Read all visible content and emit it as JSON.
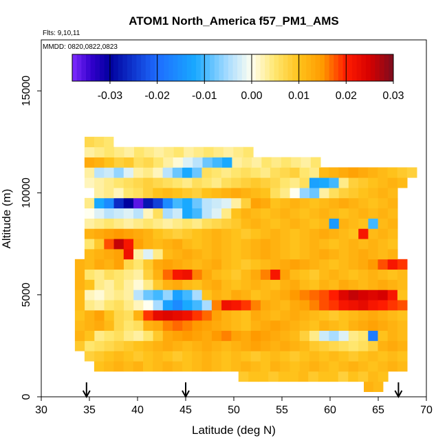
{
  "chart_data": {
    "type": "heatmap",
    "title": "ATOM1 North_America f57_PM1_AMS",
    "annotations": {
      "flights": "Flts: 9,10,11",
      "dates": "MMDD: 0820,0822,0823"
    },
    "xlabel": "Latitude (deg N)",
    "ylabel": "Altitude (m)",
    "xlim": [
      30,
      70
    ],
    "ylim": [
      0,
      17500
    ],
    "x_ticks": [
      "30",
      "35",
      "40",
      "45",
      "50",
      "55",
      "60",
      "65",
      "70"
    ],
    "y_ticks": [
      "0",
      "5000",
      "10000",
      "15000"
    ],
    "colorbar": {
      "range": [
        -0.038,
        0.03
      ],
      "ticks": [
        "-0.03",
        "-0.02",
        "-0.01",
        "0.00",
        "0.01",
        "0.02",
        "0.03"
      ],
      "stops": [
        {
          "v": -0.038,
          "c": "#7f2cff"
        },
        {
          "v": -0.034,
          "c": "#3300cc"
        },
        {
          "v": -0.03,
          "c": "#00009e"
        },
        {
          "v": -0.02,
          "c": "#1e6cff"
        },
        {
          "v": -0.012,
          "c": "#19a9ff"
        },
        {
          "v": -0.005,
          "c": "#a9dcff"
        },
        {
          "v": 0.0,
          "c": "#fffff0"
        },
        {
          "v": 0.005,
          "c": "#ffe66e"
        },
        {
          "v": 0.01,
          "c": "#ffc21b"
        },
        {
          "v": 0.015,
          "c": "#ff9a00"
        },
        {
          "v": 0.02,
          "c": "#ff1c00"
        },
        {
          "v": 0.025,
          "c": "#d60000"
        },
        {
          "v": 0.03,
          "c": "#7a0d1f"
        }
      ]
    },
    "arrows_latitude": [
      34.7,
      45.0,
      67.1
    ],
    "bins": {
      "lat_start": 34.5,
      "lat_step": 1.0,
      "alt_start": 500,
      "alt_step": 500
    },
    "rows": [
      {
        "alt": 500,
        "lat": [
          64.0,
          65.0
        ],
        "v": [
          0.012,
          0.011
        ]
      },
      {
        "alt": 1000,
        "lat": [
          51.0,
          65.5
        ],
        "v": [
          0.009,
          0.01,
          0.01,
          0.009,
          0.01,
          0.01,
          0.011,
          0.009,
          0.01,
          0.01,
          0.008,
          0.01,
          0.009,
          0.011,
          0.01
        ]
      },
      {
        "alt": 1500,
        "lat": [
          36.0,
          67.5
        ],
        "v": [
          0.01,
          0.011,
          0.012,
          0.011,
          0.012,
          0.01,
          0.011,
          0.012,
          0.011,
          0.01,
          0.011,
          0.012,
          0.011,
          0.01,
          0.011,
          0.012,
          0.011,
          0.01,
          0.012,
          0.011,
          0.01,
          0.011,
          0.012,
          0.011,
          0.01,
          0.011,
          0.012,
          0.011,
          0.01,
          0.011,
          0.012,
          0.011
        ]
      },
      {
        "alt": 2000,
        "lat": [
          35.0,
          67.5
        ],
        "v": [
          0.008,
          0.009,
          0.01,
          0.011,
          0.01,
          0.009,
          0.01,
          0.011,
          0.01,
          0.009,
          0.01,
          0.011,
          0.012,
          0.011,
          0.01,
          0.011,
          0.01,
          0.009,
          0.01,
          0.011,
          0.01,
          0.009,
          0.01,
          0.011,
          0.01,
          0.011,
          0.01,
          0.009,
          0.01,
          0.011,
          0.01,
          0.011,
          0.01
        ]
      },
      {
        "alt": 2500,
        "lat": [
          34.0,
          67.5
        ],
        "v": [
          0.009,
          0.005,
          0.006,
          0.007,
          0.008,
          0.009,
          0.01,
          0.011,
          0.012,
          0.013,
          0.012,
          0.011,
          0.012,
          0.013,
          0.012,
          0.011,
          0.012,
          0.013,
          0.014,
          0.013,
          0.012,
          0.013,
          0.012,
          0.011,
          0.009,
          0.008,
          0.007,
          0.006,
          0.005,
          0.006,
          0.008,
          0.012,
          0.013,
          0.012
        ]
      },
      {
        "alt": 3000,
        "lat": [
          34.0,
          67.5
        ],
        "v": [
          0.012,
          0.01,
          0.004,
          0.005,
          0.006,
          0.004,
          0.003,
          0.005,
          0.009,
          0.013,
          0.014,
          0.015,
          0.014,
          0.013,
          0.015,
          0.016,
          0.014,
          0.013,
          0.015,
          0.014,
          0.013,
          0.012,
          0.011,
          0.008,
          0.004,
          -0.003,
          -0.005,
          -0.002,
          0.004,
          0.005,
          -0.018,
          0.01,
          0.012,
          0.011
        ]
      },
      {
        "alt": 3500,
        "lat": [
          34.0,
          67.5
        ],
        "v": [
          0.011,
          0.012,
          0.013,
          0.011,
          0.007,
          0.005,
          0.006,
          0.012,
          0.013,
          0.016,
          0.017,
          0.016,
          0.015,
          0.014,
          0.013,
          0.012,
          0.011,
          0.01,
          0.012,
          0.013,
          0.014,
          0.013,
          0.012,
          0.011,
          0.01,
          0.012,
          0.011,
          0.01,
          0.012,
          0.013,
          0.014,
          0.013,
          0.012,
          0.011
        ]
      },
      {
        "alt": 4000,
        "lat": [
          34.0,
          67.5
        ],
        "v": [
          0.01,
          0.012,
          0.014,
          0.01,
          0.007,
          0.006,
          0.012,
          0.019,
          0.023,
          0.024,
          0.023,
          0.022,
          0.019,
          0.017,
          0.014,
          0.012,
          0.011,
          0.01,
          0.013,
          0.012,
          0.011,
          0.012,
          0.013,
          0.012,
          0.011,
          0.01,
          0.009,
          0.01,
          0.011,
          0.012,
          0.013,
          0.012,
          0.011,
          0.01
        ]
      },
      {
        "alt": 4500,
        "lat": [
          34.0,
          67.5
        ],
        "v": [
          0.011,
          0.004,
          0.003,
          0.005,
          0.006,
          0.004,
          0.002,
          0.0,
          -0.005,
          -0.013,
          -0.016,
          -0.012,
          -0.01,
          -0.005,
          0.016,
          0.022,
          0.021,
          0.019,
          0.016,
          0.013,
          0.012,
          0.011,
          0.013,
          0.014,
          0.016,
          0.018,
          0.019,
          0.021,
          0.022,
          0.023,
          0.021,
          0.02,
          0.019,
          0.018
        ]
      },
      {
        "alt": 5000,
        "lat": [
          34.0,
          67.5
        ],
        "v": [
          0.011,
          0.002,
          0.001,
          0.003,
          0.004,
          0.003,
          -0.004,
          -0.008,
          -0.01,
          -0.006,
          -0.013,
          -0.01,
          -0.005,
          0.01,
          0.012,
          0.011,
          0.013,
          0.012,
          0.01,
          0.011,
          0.012,
          0.013,
          0.015,
          0.016,
          0.017,
          0.018,
          0.02,
          0.024,
          0.026,
          0.025,
          0.024,
          0.025,
          0.021,
          0.01
        ]
      },
      {
        "alt": 5500,
        "lat": [
          34.0,
          67.5
        ],
        "v": [
          0.012,
          0.01,
          0.004,
          0.003,
          0.005,
          0.003,
          0.001,
          0.004,
          0.009,
          0.012,
          0.013,
          0.011,
          0.01,
          0.012,
          0.013,
          0.011,
          0.01,
          0.011,
          0.012,
          0.011,
          0.01,
          0.012,
          0.013,
          0.011,
          0.01,
          0.012,
          0.011,
          0.013,
          0.012,
          0.011,
          0.012,
          0.013,
          0.012,
          0.011
        ]
      },
      {
        "alt": 6000,
        "lat": [
          34.0,
          67.5
        ],
        "v": [
          0.012,
          0.005,
          0.004,
          0.006,
          0.005,
          0.004,
          0.003,
          0.008,
          0.012,
          0.017,
          0.021,
          0.022,
          0.016,
          0.013,
          0.011,
          0.01,
          0.009,
          0.011,
          0.013,
          0.016,
          0.021,
          0.014,
          0.011,
          0.01,
          0.009,
          0.011,
          0.012,
          0.011,
          0.01,
          0.011,
          0.012,
          0.011,
          0.01,
          0.011
        ]
      },
      {
        "alt": 6500,
        "lat": [
          34.0,
          67.5
        ],
        "v": [
          0.012,
          0.011,
          0.013,
          0.012,
          0.014,
          0.007,
          0.005,
          0.009,
          0.013,
          0.014,
          0.013,
          0.012,
          0.011,
          0.012,
          0.013,
          0.011,
          0.01,
          0.009,
          0.01,
          0.011,
          0.012,
          0.013,
          0.014,
          0.013,
          0.012,
          0.011,
          0.01,
          0.011,
          0.012,
          0.013,
          0.015,
          0.018,
          0.021,
          0.019
        ]
      },
      {
        "alt": 7000,
        "lat": [
          35.0,
          66.5
        ],
        "v": [
          0.011,
          0.012,
          0.013,
          0.014,
          0.022,
          0.003,
          -0.002,
          0.004,
          0.011,
          0.012,
          0.013,
          0.012,
          0.011,
          0.012,
          0.011,
          0.01,
          0.011,
          0.012,
          0.013,
          0.012,
          0.011,
          0.01,
          0.011,
          0.012,
          0.013,
          0.012,
          0.011,
          0.012,
          0.013,
          0.012,
          0.011,
          0.012
        ]
      },
      {
        "alt": 7500,
        "lat": [
          35.0,
          66.5
        ],
        "v": [
          0.005,
          0.009,
          0.018,
          0.026,
          0.021,
          0.014,
          0.012,
          0.011,
          0.012,
          0.013,
          0.011,
          0.01,
          0.011,
          0.012,
          0.011,
          0.01,
          0.011,
          0.012,
          0.013,
          0.012,
          0.011,
          0.01,
          0.011,
          0.012,
          0.011,
          0.01,
          0.011,
          0.012,
          0.011,
          0.012,
          0.011,
          0.01
        ]
      },
      {
        "alt": 8000,
        "lat": [
          35.0,
          66.5
        ],
        "v": [
          0.012,
          0.013,
          0.014,
          0.015,
          0.014,
          0.013,
          0.012,
          0.01,
          0.009,
          0.008,
          0.009,
          0.01,
          0.011,
          0.012,
          0.011,
          0.01,
          0.009,
          0.01,
          0.011,
          0.012,
          0.011,
          0.01,
          0.011,
          0.012,
          0.013,
          0.012,
          0.011,
          0.01,
          0.021,
          0.011,
          0.012,
          0.011
        ]
      },
      {
        "alt": 8500,
        "lat": [
          35.0,
          66.5
        ],
        "v": [
          0.003,
          0.004,
          0.005,
          0.004,
          0.003,
          0.004,
          0.005,
          0.004,
          0.003,
          0.004,
          0.005,
          0.004,
          0.006,
          0.007,
          0.008,
          0.009,
          0.011,
          0.012,
          0.011,
          0.01,
          0.011,
          0.012,
          0.011,
          0.01,
          0.011,
          -0.014,
          0.012,
          0.011,
          0.01,
          -0.01,
          0.011,
          0.012
        ]
      },
      {
        "alt": 9000,
        "lat": [
          35.0,
          66.5
        ],
        "v": [
          0.0,
          -0.002,
          -0.004,
          -0.003,
          -0.002,
          -0.004,
          0.002,
          0.006,
          -0.005,
          -0.003,
          -0.012,
          -0.01,
          -0.004,
          -0.002,
          0.004,
          0.01,
          0.012,
          0.011,
          0.01,
          0.011,
          0.012,
          0.011,
          0.01,
          0.011,
          0.012,
          0.011,
          0.01,
          0.011,
          0.012,
          0.011,
          0.012,
          0.011
        ]
      },
      {
        "alt": 9500,
        "lat": [
          35.0,
          66.5
        ],
        "v": [
          0.004,
          -0.012,
          -0.016,
          -0.026,
          -0.03,
          -0.036,
          -0.028,
          -0.024,
          -0.016,
          -0.01,
          -0.012,
          -0.008,
          -0.004,
          -0.003,
          -0.002,
          0.003,
          0.008,
          0.014,
          0.013,
          0.01,
          0.011,
          0.012,
          0.011,
          0.01,
          0.011,
          0.012,
          0.013,
          0.012,
          0.011,
          0.01,
          0.011,
          0.012
        ]
      },
      {
        "alt": 10000,
        "lat": [
          36.0,
          66.5
        ],
        "v": [
          0.003,
          0.004,
          0.002,
          0.005,
          0.006,
          0.008,
          0.01,
          0.011,
          0.01,
          0.009,
          0.008,
          0.01,
          0.011,
          0.012,
          0.013,
          0.012,
          0.011,
          0.01,
          0.006,
          0.004,
          0.0,
          -0.006,
          -0.008,
          0.003,
          0.006,
          0.008,
          0.009,
          0.01,
          0.011,
          0.012,
          0.011
        ]
      },
      {
        "alt": 10500,
        "lat": [
          35.0,
          67.5
        ],
        "v": [
          0.002,
          0.003,
          0.004,
          0.005,
          0.006,
          0.007,
          0.008,
          0.007,
          0.006,
          0.005,
          0.004,
          0.006,
          0.005,
          0.004,
          0.006,
          0.007,
          0.008,
          0.009,
          0.008,
          0.007,
          0.005,
          0.004,
          0.006,
          -0.013,
          -0.012,
          -0.01,
          0.004,
          0.008,
          0.009,
          0.01,
          0.011,
          0.012,
          0.011
        ]
      },
      {
        "alt": 11000,
        "lat": [
          35.0,
          68.5
        ],
        "v": [
          0.003,
          -0.004,
          -0.003,
          -0.006,
          -0.002,
          0.003,
          0.004,
          0.002,
          -0.004,
          -0.008,
          -0.012,
          -0.008,
          0.006,
          0.005,
          0.004,
          0.005,
          0.006,
          0.005,
          0.004,
          0.006,
          0.007,
          0.008,
          0.005,
          0.004,
          0.011,
          0.012,
          0.013,
          0.014,
          0.013,
          0.012,
          0.011,
          0.01,
          0.009,
          0.008
        ]
      },
      {
        "alt": 11500,
        "lat": [
          35.0,
          58.5
        ],
        "v": [
          0.013,
          0.012,
          0.01,
          0.008,
          0.009,
          0.006,
          0.007,
          0.005,
          0.003,
          0.001,
          -0.002,
          -0.004,
          -0.008,
          -0.01,
          -0.012,
          0.003,
          0.004,
          0.003,
          0.005,
          0.004,
          0.005,
          0.004,
          0.003,
          0.005
        ]
      },
      {
        "alt": 12000,
        "lat": [
          35.0,
          51.5
        ],
        "v": [
          0.003,
          0.004,
          0.005,
          0.004,
          0.003,
          0.005,
          0.004,
          0.003,
          0.004,
          0.005,
          0.003,
          0.004,
          0.005,
          0.004,
          0.003,
          0.004,
          0.005
        ]
      },
      {
        "alt": 12500,
        "lat": [
          35.0,
          37.0
        ],
        "v": [
          0.007,
          0.006,
          0.005
        ]
      }
    ]
  }
}
